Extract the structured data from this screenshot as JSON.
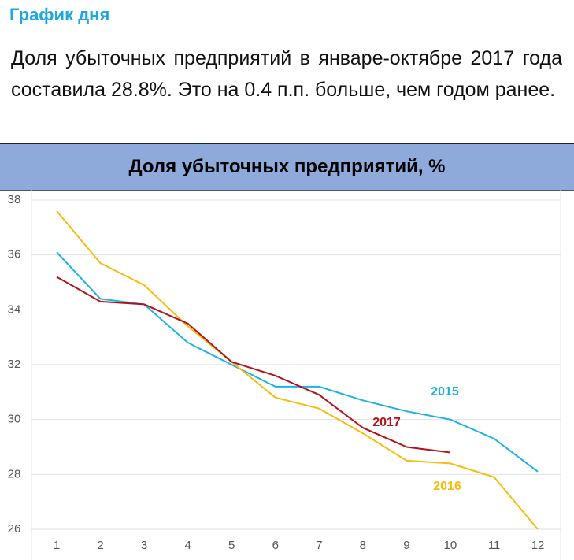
{
  "header": {
    "title": "График дня"
  },
  "text": "Доля убыточных предприятий в январе-октябре 2017 года составила 28.8%. Это на 0.4 п.п. больше, чем годом ранее.",
  "chart_data": {
    "type": "line",
    "title": "Доля убыточных предприятий, %",
    "categories": [
      "1",
      "2",
      "3",
      "4",
      "5",
      "6",
      "7",
      "8",
      "9",
      "10",
      "11",
      "12"
    ],
    "ylim": [
      26,
      38
    ],
    "yticks": [
      26,
      28,
      30,
      32,
      34,
      36,
      38
    ],
    "grid": true,
    "series": [
      {
        "name": "2015",
        "color": "#1cb3e3",
        "values": [
          36.1,
          34.4,
          34.2,
          32.8,
          32.0,
          31.2,
          31.2,
          30.7,
          30.3,
          30.0,
          29.3,
          28.1
        ]
      },
      {
        "name": "2016",
        "color": "#f6bd0f",
        "values": [
          37.6,
          35.7,
          34.9,
          33.4,
          32.1,
          30.8,
          30.4,
          29.5,
          28.5,
          28.4,
          27.9,
          26.0
        ]
      },
      {
        "name": "2017",
        "color": "#b3141b",
        "values": [
          35.2,
          34.3,
          34.2,
          33.5,
          32.1,
          31.6,
          30.9,
          29.7,
          29.0,
          28.8,
          null,
          null
        ]
      }
    ]
  }
}
